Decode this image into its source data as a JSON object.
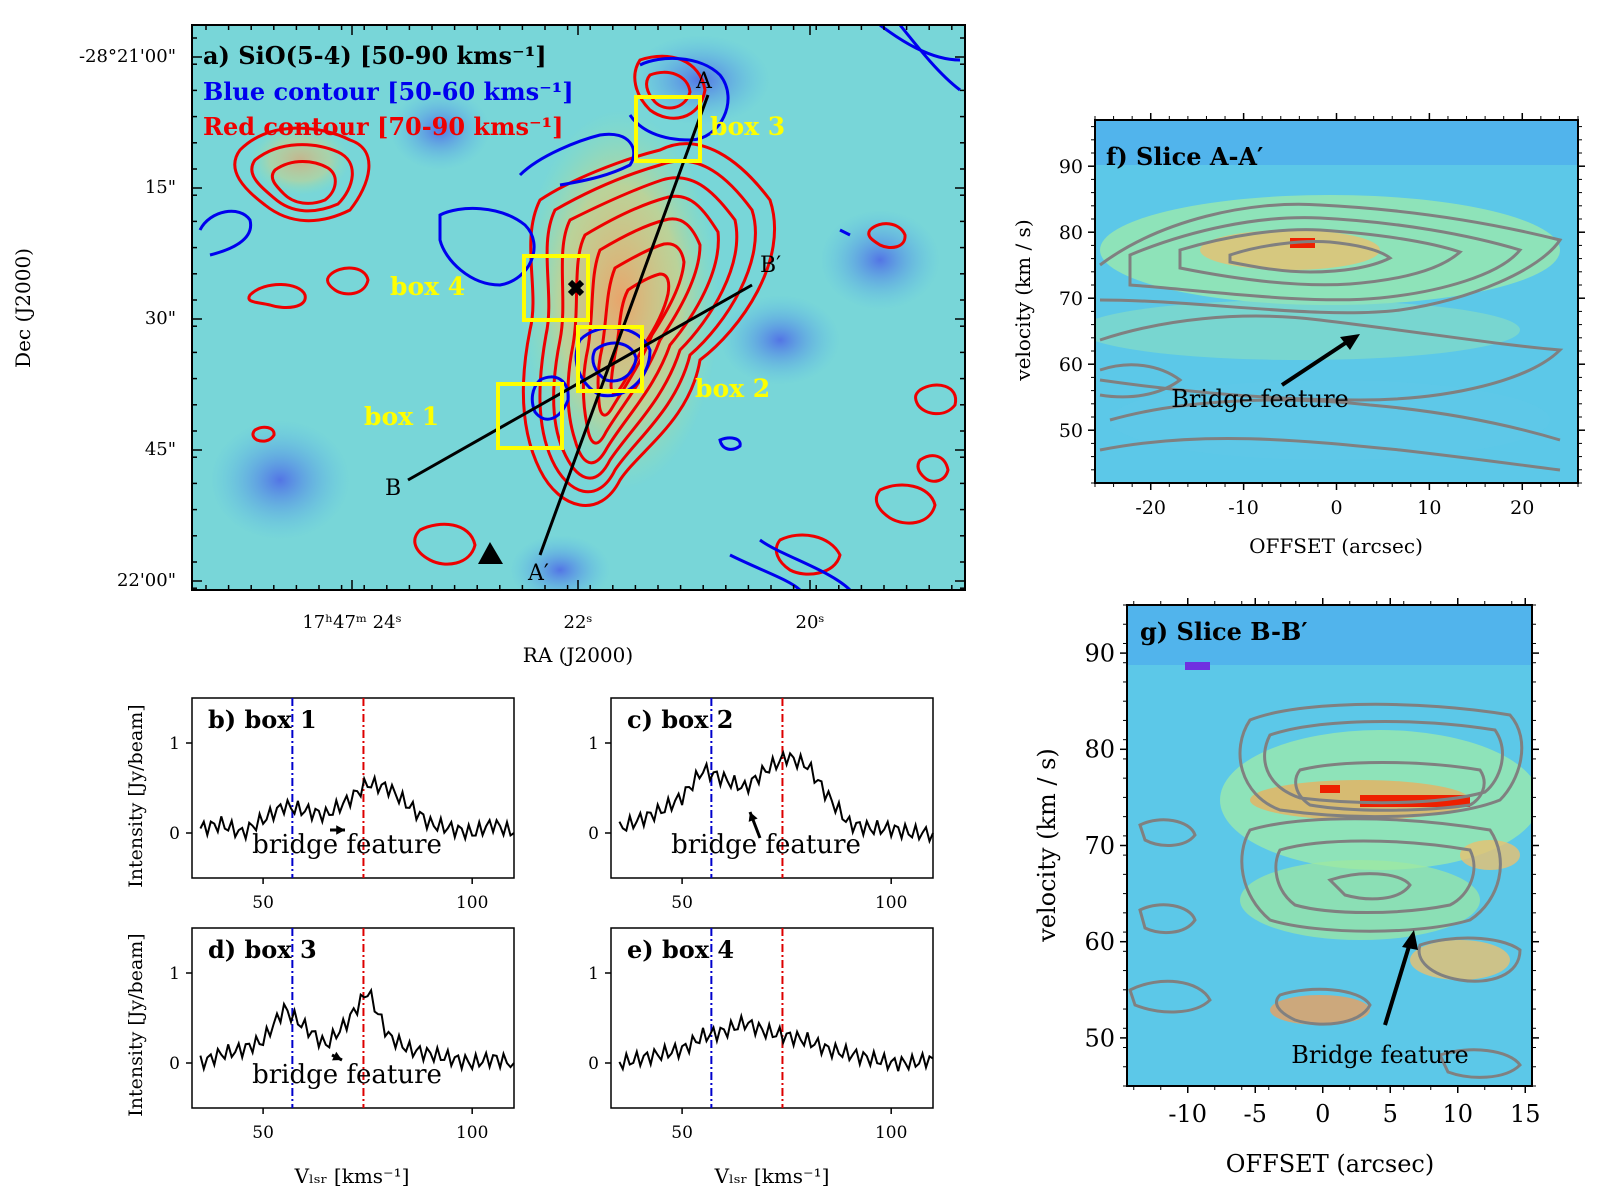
{
  "colors": {
    "blue_contour": "#0000ee",
    "red_contour": "#ee0000",
    "box": "#ffff00",
    "pv_contour": "#808080",
    "line": "#000000",
    "vline_blue": "#0000cc",
    "vline_red": "#dd0000"
  },
  "panel_a": {
    "title": "a) SiO(5-4) [50-90 kms⁻¹]",
    "blue_label": "Blue contour [50-60 kms⁻¹]",
    "red_label": "Red contour [70-90 kms⁻¹]",
    "xlabel": "RA (J2000)",
    "ylabel": "Dec (J2000)",
    "dec_ticks": [
      "-28°21'00\"",
      "15\"",
      "30\"",
      "45\"",
      "22'00\""
    ],
    "ra_ticks": [
      "17ʰ47ᵐ 24ˢ",
      "22ˢ",
      "20ˢ"
    ],
    "boxes": [
      "box 1",
      "box 2",
      "box 3",
      "box 4"
    ],
    "slice_labels": [
      "A",
      "A′",
      "B",
      "B′"
    ]
  },
  "chart_data": [
    {
      "panel": "b",
      "type": "line",
      "title": "b) box 1",
      "annotation": "bridge feature",
      "x": [
        35,
        40,
        45,
        50,
        55,
        60,
        65,
        70,
        75,
        80,
        85,
        90,
        95,
        100,
        105,
        110
      ],
      "y": [
        0.05,
        0.1,
        0.0,
        0.15,
        0.3,
        0.25,
        0.2,
        0.35,
        0.55,
        0.5,
        0.3,
        0.1,
        0.05,
        0.0,
        0.1,
        0.0
      ],
      "xlim": [
        33,
        110
      ],
      "ylim": [
        -0.5,
        1.5
      ],
      "xticks": [
        50,
        100
      ],
      "yticks": [
        0,
        1
      ],
      "vlines": [
        57,
        74
      ]
    },
    {
      "panel": "c",
      "type": "line",
      "title": "c) box 2",
      "annotation": "bridge feature",
      "x": [
        35,
        40,
        45,
        50,
        55,
        60,
        65,
        70,
        75,
        80,
        85,
        90,
        95,
        100,
        105,
        110
      ],
      "y": [
        0.05,
        0.15,
        0.25,
        0.4,
        0.7,
        0.6,
        0.5,
        0.7,
        0.85,
        0.75,
        0.4,
        0.1,
        0.05,
        0.05,
        0.0,
        0.0
      ],
      "xlim": [
        33,
        110
      ],
      "ylim": [
        -0.5,
        1.5
      ],
      "xticks": [
        50,
        100
      ],
      "yticks": [
        0,
        1
      ],
      "vlines": [
        57,
        74
      ]
    },
    {
      "panel": "d",
      "type": "line",
      "title": "d) box 3",
      "annotation": "bridge feature",
      "x": [
        35,
        40,
        45,
        50,
        55,
        60,
        65,
        70,
        75,
        80,
        85,
        90,
        95,
        100,
        105,
        110
      ],
      "y": [
        0.0,
        0.1,
        0.15,
        0.25,
        0.6,
        0.4,
        0.2,
        0.45,
        0.8,
        0.3,
        0.15,
        0.1,
        0.05,
        0.0,
        0.05,
        0.0
      ],
      "xlim": [
        33,
        110
      ],
      "ylim": [
        -0.5,
        1.5
      ],
      "xticks": [
        50,
        100
      ],
      "yticks": [
        0,
        1
      ],
      "vlines": [
        57,
        74
      ]
    },
    {
      "panel": "e",
      "type": "line",
      "title": "e) box 4",
      "annotation": "",
      "x": [
        35,
        40,
        45,
        50,
        55,
        60,
        65,
        70,
        75,
        80,
        85,
        90,
        95,
        100,
        105,
        110
      ],
      "y": [
        0.0,
        0.05,
        0.1,
        0.15,
        0.3,
        0.35,
        0.45,
        0.35,
        0.3,
        0.25,
        0.15,
        0.1,
        0.05,
        0.0,
        0.0,
        0.05
      ],
      "xlim": [
        33,
        110
      ],
      "ylim": [
        -0.5,
        1.5
      ],
      "xticks": [
        50,
        100
      ],
      "yticks": [
        0,
        1
      ],
      "vlines": [
        57,
        74
      ]
    },
    {
      "panel": "f",
      "type": "heatmap",
      "title": "f) Slice A-A′",
      "annotation": "Bridge feature",
      "xlabel": "OFFSET (arcsec)",
      "ylabel": "velocity (km / s)",
      "xlim": [
        -26,
        26
      ],
      "ylim": [
        42,
        97
      ],
      "xticks": [
        -20,
        -10,
        0,
        10,
        20
      ],
      "yticks": [
        50,
        60,
        70,
        80,
        90
      ]
    },
    {
      "panel": "g",
      "type": "heatmap",
      "title": "g) Slice B-B′",
      "annotation": "Bridge feature",
      "xlabel": "OFFSET (arcsec)",
      "ylabel": "velocity (km / s)",
      "xlim": [
        -14.5,
        15.5
      ],
      "ylim": [
        45,
        95
      ],
      "xticks": [
        -10,
        -5,
        0,
        5,
        10,
        15
      ],
      "yticks": [
        50,
        60,
        70,
        80,
        90
      ]
    }
  ],
  "spectra": {
    "xlabel": "Vₗₛᵣ [kms⁻¹]",
    "ylabel": "Intensity [Jy/beam]"
  }
}
